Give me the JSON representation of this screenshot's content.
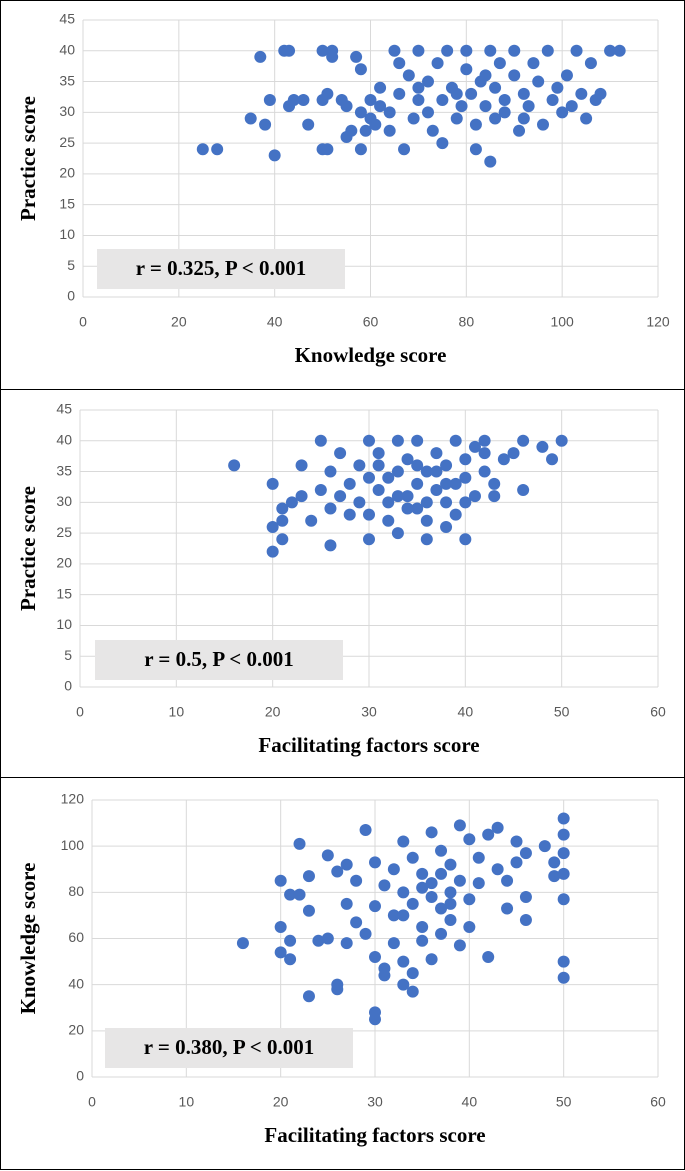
{
  "chart_data": [
    {
      "type": "scatter",
      "x_label": "Knowledge score",
      "y_label": "Practice score",
      "annotation": "r = 0.325, P < 0.001",
      "color": "#4472c4",
      "grid": true,
      "xlim": [
        0,
        120
      ],
      "xticks": [
        0,
        20,
        40,
        60,
        80,
        100,
        120
      ],
      "ylim": [
        0,
        45
      ],
      "yticks": [
        0,
        5,
        10,
        15,
        20,
        25,
        30,
        35,
        40,
        45
      ],
      "x": [
        25,
        28,
        35,
        37,
        38,
        39,
        40,
        42,
        43,
        43,
        44,
        46,
        47,
        50,
        51,
        50,
        52,
        52,
        50,
        51,
        54,
        55,
        55,
        56,
        57,
        58,
        58,
        58,
        59,
        60,
        60,
        61,
        62,
        62,
        64,
        64,
        65,
        66,
        67,
        68,
        69,
        70,
        70,
        72,
        72,
        73,
        74,
        75,
        75,
        76,
        77,
        78,
        79,
        80,
        80,
        81,
        82,
        82,
        83,
        84,
        85,
        85,
        86,
        86,
        87,
        88,
        88,
        90,
        90,
        91,
        92,
        93,
        94,
        95,
        96,
        97,
        98,
        99,
        100,
        101,
        102,
        103,
        104,
        105,
        106,
        107,
        108,
        110,
        112,
        78,
        84,
        92,
        70,
        66
      ],
      "values": [
        24,
        24,
        29,
        39,
        28,
        32,
        23,
        40,
        40,
        31,
        32,
        32,
        28,
        24,
        24,
        40,
        40,
        39,
        32,
        33,
        32,
        31,
        26,
        27,
        39,
        37,
        24,
        30,
        27,
        32,
        29,
        28,
        31,
        34,
        30,
        27,
        40,
        33,
        24,
        36,
        29,
        32,
        40,
        30,
        35,
        27,
        38,
        32,
        25,
        40,
        34,
        29,
        31,
        37,
        40,
        33,
        28,
        24,
        35,
        31,
        40,
        22,
        29,
        34,
        38,
        32,
        30,
        36,
        40,
        27,
        33,
        31,
        38,
        35,
        28,
        40,
        32,
        34,
        30,
        36,
        31,
        40,
        33,
        29,
        38,
        32,
        33,
        40,
        40,
        33,
        36,
        29,
        34,
        38
      ]
    },
    {
      "type": "scatter",
      "x_label": "Facilitating factors score",
      "y_label": "Practice score",
      "annotation": "r = 0.5, P < 0.001",
      "color": "#4472c4",
      "grid": true,
      "xlim": [
        0,
        60
      ],
      "xticks": [
        0,
        10,
        20,
        30,
        40,
        50,
        60
      ],
      "ylim": [
        0,
        45
      ],
      "yticks": [
        0,
        5,
        10,
        15,
        20,
        25,
        30,
        35,
        40,
        45
      ],
      "x": [
        16,
        20,
        20,
        20,
        21,
        21,
        21,
        22,
        23,
        23,
        24,
        25,
        25,
        26,
        26,
        26,
        27,
        27,
        28,
        28,
        29,
        29,
        30,
        30,
        30,
        30,
        31,
        31,
        32,
        32,
        33,
        33,
        33,
        34,
        34,
        35,
        35,
        35,
        36,
        36,
        36,
        37,
        37,
        38,
        38,
        38,
        39,
        39,
        39,
        40,
        40,
        40,
        41,
        41,
        42,
        42,
        43,
        43,
        44,
        45,
        46,
        46,
        48,
        49,
        50,
        32,
        34,
        37,
        31,
        33,
        36,
        38,
        35,
        40,
        42
      ],
      "values": [
        36,
        33,
        26,
        22,
        27,
        24,
        29,
        30,
        36,
        31,
        27,
        40,
        32,
        23,
        29,
        35,
        38,
        31,
        33,
        28,
        36,
        30,
        40,
        24,
        34,
        28,
        32,
        38,
        30,
        27,
        40,
        35,
        25,
        31,
        37,
        29,
        33,
        40,
        24,
        35,
        27,
        32,
        38,
        30,
        36,
        26,
        40,
        33,
        28,
        34,
        24,
        37,
        31,
        39,
        35,
        40,
        33,
        31,
        37,
        38,
        32,
        40,
        39,
        37,
        40,
        34,
        29,
        35,
        36,
        31,
        30,
        33,
        36,
        30,
        38
      ]
    },
    {
      "type": "scatter",
      "x_label": "Facilitating factors score",
      "y_label": "Knowledge score",
      "annotation": "r = 0.380, P < 0.001",
      "color": "#4472c4",
      "grid": true,
      "xlim": [
        0,
        60
      ],
      "xticks": [
        0,
        10,
        20,
        30,
        40,
        50,
        60
      ],
      "ylim": [
        0,
        120
      ],
      "yticks": [
        0,
        20,
        40,
        60,
        80,
        100,
        120
      ],
      "x": [
        16,
        20,
        20,
        20,
        21,
        21,
        21,
        22,
        22,
        23,
        23,
        23,
        24,
        25,
        25,
        26,
        26,
        26,
        27,
        27,
        27,
        28,
        28,
        29,
        29,
        30,
        30,
        30,
        30,
        30,
        31,
        31,
        31,
        32,
        32,
        32,
        33,
        33,
        33,
        33,
        34,
        34,
        34,
        34,
        35,
        35,
        35,
        36,
        36,
        36,
        37,
        37,
        37,
        38,
        38,
        38,
        39,
        39,
        39,
        40,
        40,
        40,
        41,
        41,
        42,
        42,
        43,
        43,
        44,
        44,
        45,
        45,
        46,
        46,
        46,
        48,
        49,
        49,
        50,
        50,
        50,
        50,
        50,
        50,
        50,
        36,
        38,
        33,
        35,
        37
      ],
      "values": [
        58,
        85,
        65,
        54,
        79,
        59,
        51,
        101,
        79,
        87,
        72,
        35,
        59,
        96,
        60,
        89,
        40,
        38,
        92,
        75,
        58,
        85,
        67,
        107,
        62,
        93,
        74,
        52,
        28,
        25,
        83,
        47,
        44,
        90,
        70,
        58,
        102,
        80,
        50,
        40,
        95,
        75,
        45,
        37,
        88,
        65,
        59,
        106,
        84,
        51,
        98,
        73,
        62,
        92,
        80,
        68,
        109,
        85,
        57,
        103,
        77,
        65,
        95,
        84,
        105,
        52,
        108,
        90,
        85,
        73,
        102,
        93,
        97,
        78,
        68,
        100,
        87,
        93,
        112,
        105,
        97,
        88,
        77,
        50,
        43,
        78,
        75,
        70,
        82,
        88
      ]
    }
  ]
}
